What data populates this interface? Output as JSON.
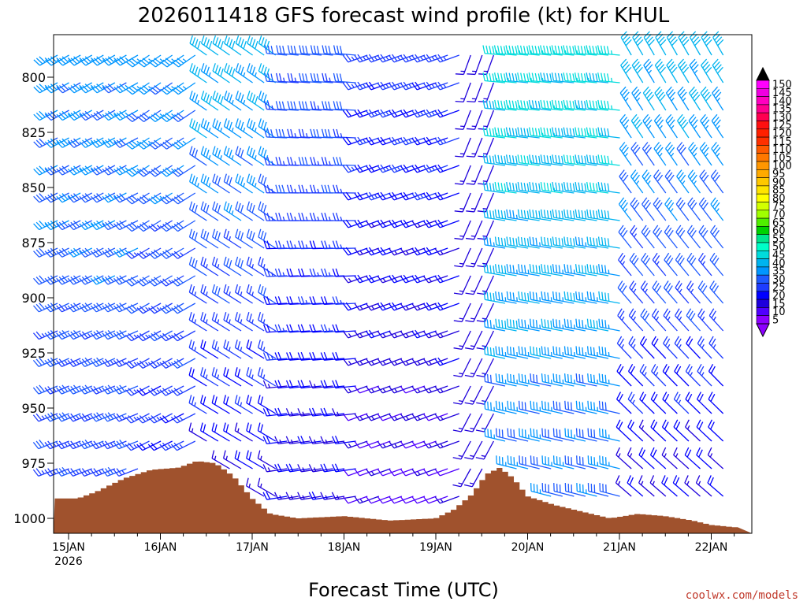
{
  "chart_data": {
    "type": "wind-barb-profile",
    "title": "2026011418 GFS forecast wind profile (kt) for KHUL",
    "xlabel": "Forecast Time (UTC)",
    "ylabel": "",
    "credit": "coolwx.com/models",
    "x_ticks": [
      {
        "label": "15JAN",
        "sub": "2026",
        "day": 0.0
      },
      {
        "label": "16JAN",
        "sub": "",
        "day": 1.0
      },
      {
        "label": "17JAN",
        "sub": "",
        "day": 2.0
      },
      {
        "label": "18JAN",
        "sub": "",
        "day": 3.0
      },
      {
        "label": "19JAN",
        "sub": "",
        "day": 4.0
      },
      {
        "label": "20JAN",
        "sub": "",
        "day": 5.0
      },
      {
        "label": "21JAN",
        "sub": "",
        "day": 6.0
      },
      {
        "label": "22JAN",
        "sub": "",
        "day": 7.0
      }
    ],
    "xlim_days": [
      -0.3,
      7.25
    ],
    "y_ticks": [
      800,
      825,
      850,
      875,
      900,
      925,
      950,
      975,
      1000
    ],
    "ylim_hpa": [
      1007,
      782
    ],
    "colorbar": {
      "unit": "kt",
      "labels": [
        "150",
        "145",
        "140",
        "135",
        "130",
        "125",
        "120",
        "115",
        "110",
        "105",
        "100",
        "95",
        "90",
        "85",
        "80",
        "75",
        "70",
        "65",
        "60",
        "55",
        "50",
        "45",
        "40",
        "35",
        "30",
        "25",
        "20",
        "15",
        "10",
        "5"
      ],
      "colors": [
        "#ff00ff",
        "#f000e0",
        "#ff00c0",
        "#ff0090",
        "#ff0050",
        "#ff1010",
        "#ff2000",
        "#ff3000",
        "#ff5a00",
        "#ff7800",
        "#ff9600",
        "#ffaa00",
        "#ffc800",
        "#ffe400",
        "#ffff00",
        "#d2ff00",
        "#a0ff00",
        "#50f000",
        "#00d200",
        "#00e68c",
        "#00ffc8",
        "#00dcdc",
        "#00b4f0",
        "#0096ff",
        "#1e5aff",
        "#1e3cff",
        "#0000ff",
        "#1e00dc",
        "#5000ff",
        "#8c00ff"
      ]
    },
    "terrain_surface_hpa": [
      {
        "day": -0.3,
        "p": 991
      },
      {
        "day": 0.1,
        "p": 991
      },
      {
        "day": 0.3,
        "p": 988
      },
      {
        "day": 0.6,
        "p": 982
      },
      {
        "day": 0.9,
        "p": 978
      },
      {
        "day": 1.2,
        "p": 977
      },
      {
        "day": 1.4,
        "p": 974
      },
      {
        "day": 1.6,
        "p": 975
      },
      {
        "day": 1.8,
        "p": 981
      },
      {
        "day": 2.0,
        "p": 991
      },
      {
        "day": 2.2,
        "p": 998
      },
      {
        "day": 2.5,
        "p": 1000
      },
      {
        "day": 3.0,
        "p": 999
      },
      {
        "day": 3.5,
        "p": 1001
      },
      {
        "day": 4.0,
        "p": 1000
      },
      {
        "day": 4.2,
        "p": 996
      },
      {
        "day": 4.4,
        "p": 989
      },
      {
        "day": 4.55,
        "p": 980
      },
      {
        "day": 4.7,
        "p": 977
      },
      {
        "day": 4.85,
        "p": 982
      },
      {
        "day": 5.0,
        "p": 990
      },
      {
        "day": 5.3,
        "p": 994
      },
      {
        "day": 5.6,
        "p": 997
      },
      {
        "day": 5.9,
        "p": 1000
      },
      {
        "day": 6.2,
        "p": 998
      },
      {
        "day": 6.5,
        "p": 999
      },
      {
        "day": 6.8,
        "p": 1001
      },
      {
        "day": 7.0,
        "p": 1003
      },
      {
        "day": 7.25,
        "p": 1004
      }
    ],
    "wind_regimes": [
      {
        "from_day": -0.3,
        "to_day": 0.85,
        "low_dir": 250,
        "low_spd": 25,
        "high_dir": 240,
        "high_spd": 35
      },
      {
        "from_day": 0.85,
        "to_day": 1.45,
        "low_dir": 245,
        "low_spd": 20,
        "high_dir": 235,
        "high_spd": 35
      },
      {
        "from_day": 1.45,
        "to_day": 2.35,
        "low_dir": 300,
        "low_spd": 15,
        "high_dir": 305,
        "high_spd": 40
      },
      {
        "from_day": 2.35,
        "to_day": 3.25,
        "low_dir": 260,
        "low_spd": 15,
        "high_dir": 275,
        "high_spd": 30
      },
      {
        "from_day": 3.25,
        "to_day": 4.35,
        "low_dir": 250,
        "low_spd": 10,
        "high_dir": 250,
        "high_spd": 25
      },
      {
        "from_day": 4.35,
        "to_day": 4.7,
        "low_dir": 210,
        "low_spd": 15,
        "high_dir": 200,
        "high_spd": 15
      },
      {
        "from_day": 4.7,
        "to_day": 6.1,
        "low_dir": 285,
        "low_spd": 30,
        "high_dir": 275,
        "high_spd": 45
      },
      {
        "from_day": 6.1,
        "to_day": 7.25,
        "low_dir": 310,
        "low_spd": 15,
        "high_dir": 330,
        "high_spd": 40
      }
    ]
  }
}
